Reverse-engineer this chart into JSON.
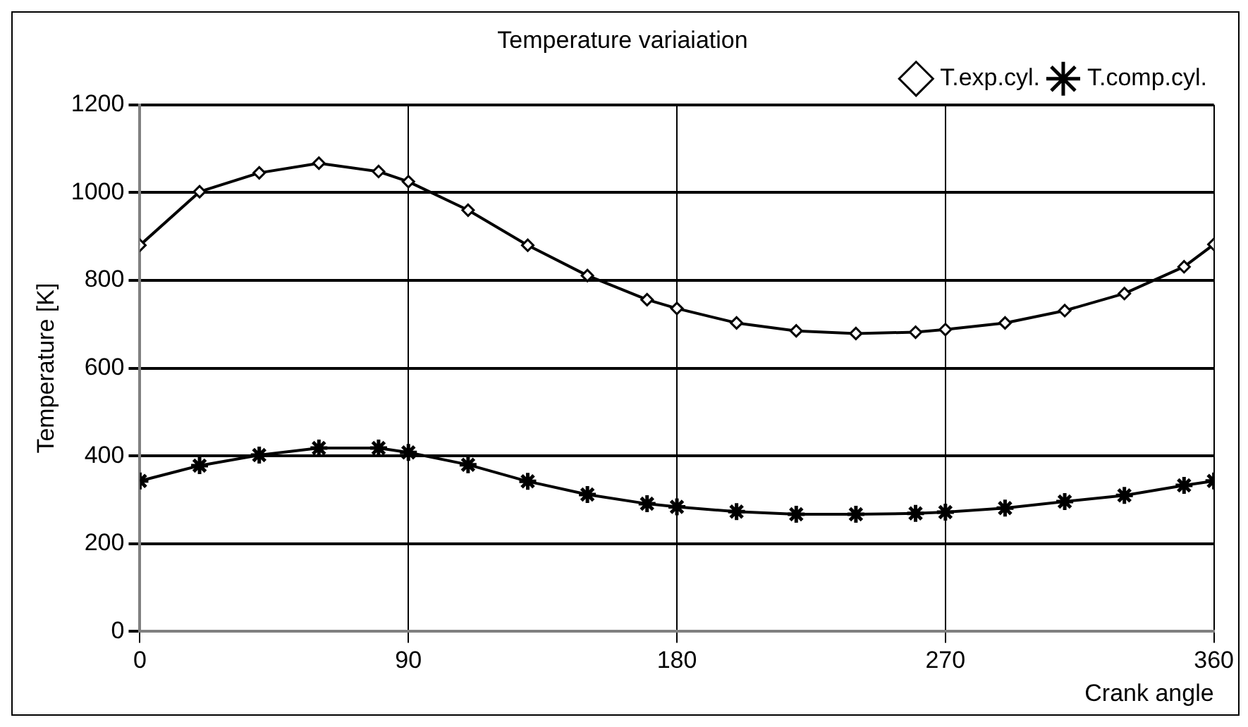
{
  "chart_data": {
    "type": "line",
    "title": "Temperature variaiation",
    "xlabel": "Crank angle",
    "ylabel": "Temperature [K]",
    "x": [
      0,
      20,
      40,
      60,
      80,
      90,
      110,
      130,
      150,
      170,
      180,
      200,
      220,
      240,
      260,
      270,
      290,
      310,
      330,
      350,
      360
    ],
    "series": [
      {
        "name": "T.exp.cyl.",
        "color": "#000000",
        "marker": "diamond",
        "values": [
          880,
          1002,
          1045,
          1067,
          1048,
          1025,
          960,
          880,
          811,
          756,
          736,
          703,
          685,
          679,
          682,
          688,
          703,
          731,
          770,
          831,
          882
        ]
      },
      {
        "name": "T.comp.cyl.",
        "color": "#000000",
        "marker": "cross",
        "values": [
          343,
          378,
          402,
          418,
          418,
          408,
          380,
          342,
          312,
          291,
          284,
          273,
          267,
          267,
          269,
          272,
          281,
          296,
          310,
          333,
          343
        ]
      }
    ],
    "xlim": [
      0,
      360
    ],
    "xticks": [
      0,
      90,
      180,
      270,
      360
    ],
    "ylim": [
      0,
      1200
    ],
    "yticks": [
      0,
      200,
      400,
      600,
      800,
      1000,
      1200
    ],
    "grid": true,
    "legend": "top right",
    "line_style": "solid"
  }
}
